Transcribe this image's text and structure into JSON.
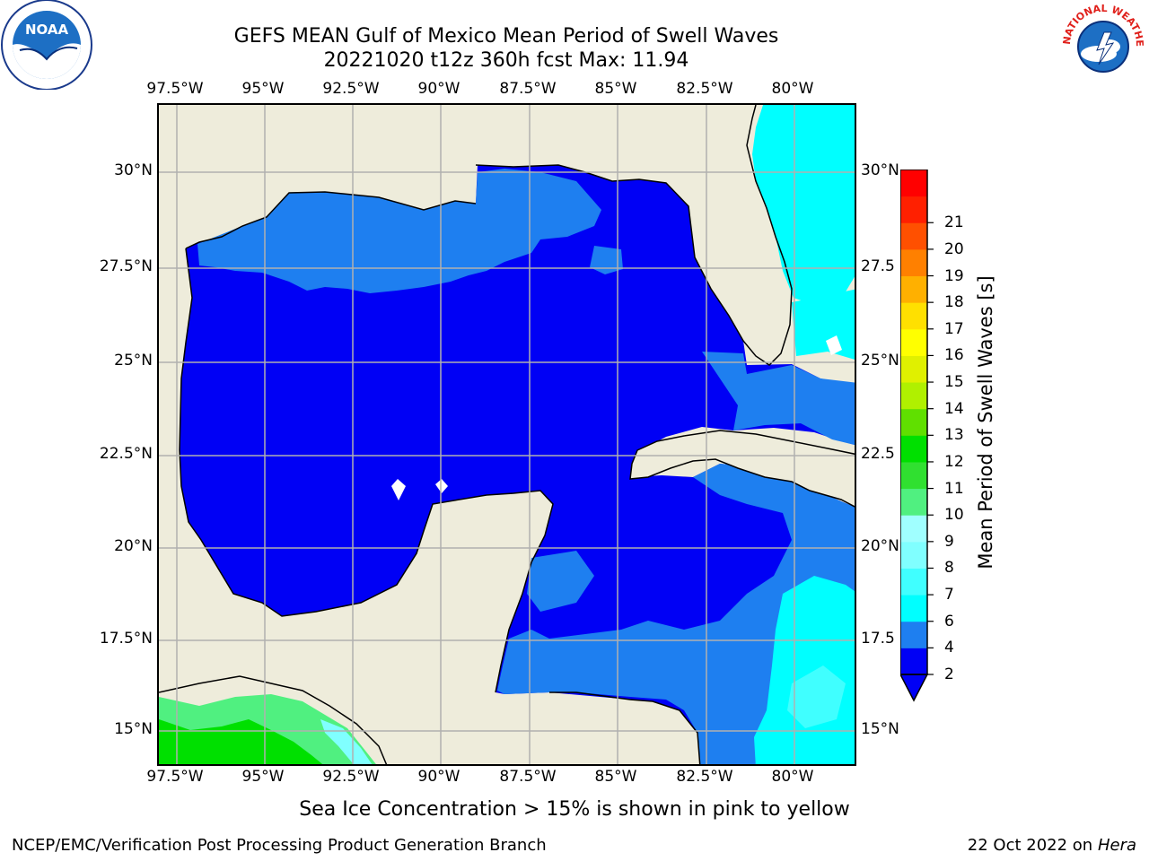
{
  "title": {
    "line1": "GEFS MEAN Gulf of Mexico Mean Period of Swell Waves",
    "line2": "20221020 t12z 360h fcst   Max: 11.94"
  },
  "map": {
    "lon_labels": [
      "97.5°W",
      "95°W",
      "92.5°W",
      "90°W",
      "87.5°W",
      "85°W",
      "82.5°W",
      "80°W"
    ],
    "lat_labels_left": [
      "30°N",
      "27.5°N",
      "25°N",
      "22.5°N",
      "20°N",
      "17.5°N",
      "15°N"
    ],
    "lat_labels_right": [
      "30°N",
      "27.5",
      "25°N",
      "22.5",
      "20°N",
      "17.5",
      "15°N"
    ],
    "land_color": "#eeecdb",
    "ocean_dominant_color": "#0000f5",
    "grid": true
  },
  "colorbar": {
    "title": "Mean Period of Swell Waves [s]",
    "levels": [
      "2",
      "4",
      "6",
      "7",
      "8",
      "9",
      "10",
      "11",
      "12",
      "13",
      "14",
      "15",
      "16",
      "17",
      "18",
      "19",
      "20",
      "21"
    ],
    "colors": [
      "#0000f5",
      "#1e7ff0",
      "#00ffff",
      "#40ffff",
      "#80ffff",
      "#a0ffff",
      "#50f080",
      "#30e030",
      "#00e000",
      "#60e000",
      "#b0f000",
      "#e0f000",
      "#ffff00",
      "#ffe000",
      "#ffb000",
      "#ff8000",
      "#ff5000",
      "#ff2000",
      "#ff0000"
    ]
  },
  "chart_data": {
    "type": "heatmap",
    "title": "GEFS MEAN Gulf of Mexico Mean Period of Swell Waves",
    "subtitle": "20221020 t12z 360h fcst   Max: 11.94",
    "xlabel": "",
    "ylabel": "",
    "colorbar_label": "Mean Period of Swell Waves [s]",
    "colorbar_ticks": [
      2,
      4,
      6,
      7,
      8,
      9,
      10,
      11,
      12,
      13,
      14,
      15,
      16,
      17,
      18,
      19,
      20,
      21
    ],
    "max": 11.94,
    "x_ticks": [
      "97.5°W",
      "95°W",
      "92.5°W",
      "90°W",
      "87.5°W",
      "85°W",
      "82.5°W",
      "80°W"
    ],
    "y_ticks": [
      "30°N",
      "27.5°N",
      "25°N",
      "22.5°N",
      "20°N",
      "17.5°N",
      "15°N"
    ]
  },
  "note": "Sea Ice Concentration > 15% is shown in pink to yellow",
  "footer": {
    "left": "NCEP/EMC/Verification Post Processing Product Generation Branch",
    "right_date": "22 Oct 2022 on",
    "right_host": "Hera"
  },
  "logos": {
    "noaa_label": "NOAA",
    "nws_ring_text": "NATIONAL WEATHER SERVICE"
  }
}
